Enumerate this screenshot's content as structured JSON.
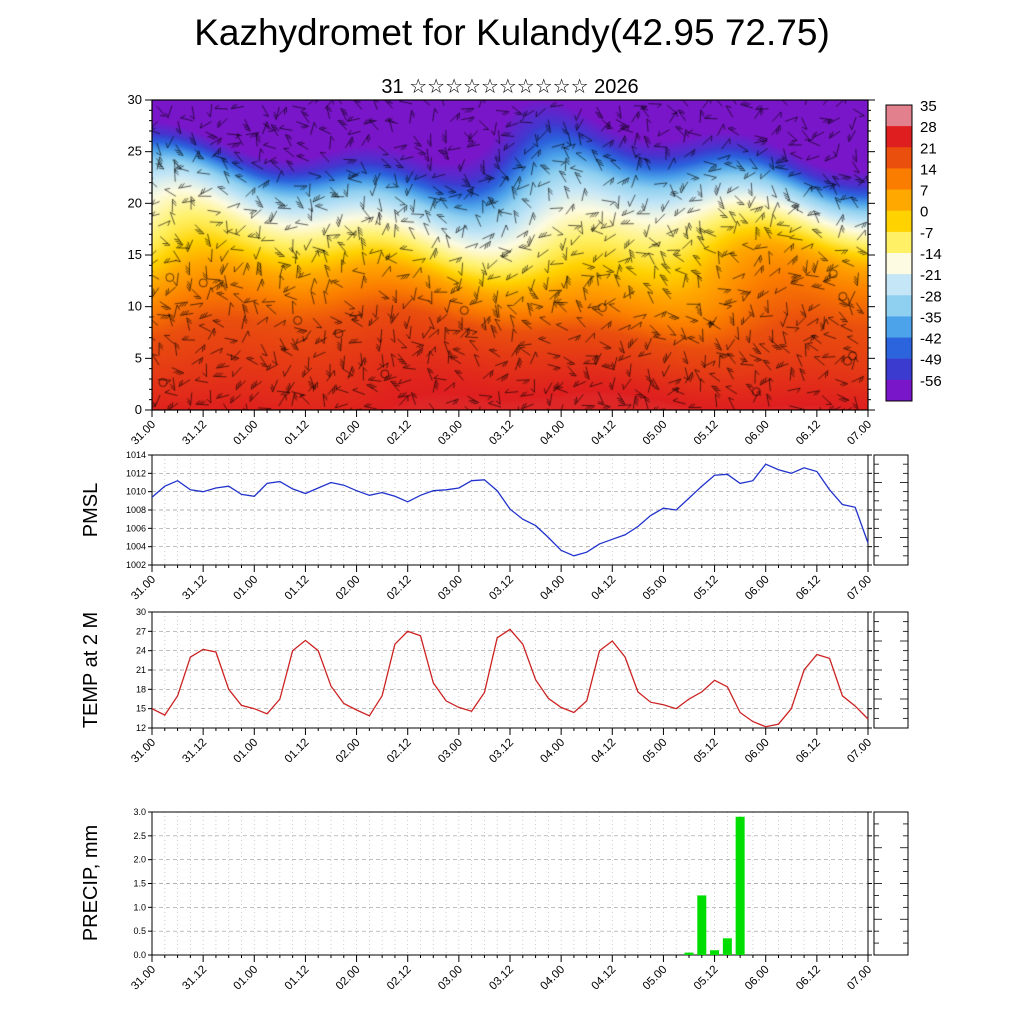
{
  "header": {
    "title": "Kazhydromet for Kulandy(42.95 72.75)",
    "subtitle": "31 ☆☆☆☆☆☆☆☆☆☆ 2026"
  },
  "x_tick_labels": [
    "31.00",
    "31.12",
    "01.00",
    "01.12",
    "02.00",
    "02.12",
    "03.00",
    "03.12",
    "04.00",
    "04.12",
    "05.00",
    "05.12",
    "06.00",
    "06.12",
    "07.00"
  ],
  "chart_data": [
    {
      "id": "temperature_height_cross_section",
      "type": "heatmap",
      "overlay": "wind-barbs",
      "ylim": [
        0,
        30
      ],
      "y_ticks": [
        0,
        5,
        10,
        15,
        20,
        25,
        30
      ],
      "y_tick_labels": [
        "0",
        "5",
        "10",
        "15",
        "20",
        "25",
        "30"
      ],
      "profile_anchors": [
        [
          0,
          28.5
        ],
        [
          8,
          21
        ],
        [
          13,
          7
        ],
        [
          15.5,
          -5
        ],
        [
          18,
          -14
        ],
        [
          21,
          -28
        ],
        [
          23,
          -40
        ],
        [
          24.5,
          -50
        ],
        [
          27,
          -58
        ],
        [
          30,
          -63
        ]
      ],
      "colorbar": {
        "tick_labels": [
          "35",
          "28",
          "21",
          "14",
          "7",
          "0",
          "-7",
          "-14",
          "-21",
          "-28",
          "-35",
          "-42",
          "-49",
          "-56"
        ],
        "colors": [
          "#e2808e",
          "#df1f1f",
          "#ea4f0e",
          "#fb7d00",
          "#ffa800",
          "#ffd200",
          "#fff066",
          "#fdfbe1",
          "#c4e6f6",
          "#8fd0f0",
          "#4da3ea",
          "#2b64dd",
          "#3c3bd0",
          "#7a16c9"
        ]
      }
    },
    {
      "id": "pmsl",
      "type": "line",
      "label": "PMSL",
      "color": "#2233cc",
      "ylim": [
        1002,
        1014
      ],
      "y_ticks": [
        1002,
        1004,
        1006,
        1008,
        1010,
        1012,
        1014
      ],
      "y_tick_labels": [
        "1002",
        "1004",
        "1006",
        "1008",
        "1010",
        "1012",
        "1014"
      ],
      "x_step_hours": 3,
      "values": [
        1009.4,
        1010.6,
        1011.2,
        1010.2,
        1010.0,
        1010.4,
        1010.6,
        1009.7,
        1009.5,
        1010.9,
        1011.1,
        1010.3,
        1009.8,
        1010.4,
        1011.0,
        1010.7,
        1010.1,
        1009.6,
        1009.9,
        1009.5,
        1008.9,
        1009.6,
        1010.1,
        1010.2,
        1010.4,
        1011.2,
        1011.3,
        1010.1,
        1008.1,
        1007.0,
        1006.3,
        1005.0,
        1003.6,
        1003.0,
        1003.4,
        1004.3,
        1004.8,
        1005.3,
        1006.2,
        1007.4,
        1008.2,
        1008.0,
        1009.3,
        1010.6,
        1011.8,
        1011.9,
        1010.9,
        1011.2,
        1013.0,
        1012.4,
        1012.0,
        1012.6,
        1012.2,
        1010.2,
        1008.6,
        1008.3,
        1004.4
      ]
    },
    {
      "id": "temp_2m",
      "type": "line",
      "label": "TEMP at 2 M",
      "color": "#cc2222",
      "ylim": [
        12,
        30
      ],
      "y_ticks": [
        12,
        15,
        18,
        21,
        24,
        27,
        30
      ],
      "y_tick_labels": [
        "12",
        "15",
        "18",
        "21",
        "24",
        "27",
        "30"
      ],
      "x_step_hours": 3,
      "values": [
        15.0,
        14.0,
        17.0,
        23.0,
        24.2,
        23.8,
        18.0,
        15.5,
        15.0,
        14.2,
        16.5,
        24.0,
        25.6,
        24.0,
        18.5,
        15.8,
        14.8,
        13.9,
        17.0,
        25.0,
        27.0,
        26.3,
        19.0,
        16.2,
        15.2,
        14.6,
        17.5,
        26.0,
        27.3,
        25.0,
        19.5,
        16.6,
        15.2,
        14.4,
        16.2,
        24.0,
        25.5,
        23.0,
        17.6,
        16.0,
        15.6,
        15.0,
        16.5,
        17.6,
        19.4,
        18.4,
        14.4,
        13.0,
        12.2,
        12.6,
        15.0,
        21.0,
        23.4,
        22.8,
        17.0,
        15.4,
        13.4
      ]
    },
    {
      "id": "precip",
      "type": "bar",
      "label": "PRECIP, mm",
      "color": "#00dd00",
      "ylim": [
        0,
        3
      ],
      "y_ticks": [
        0,
        0.5,
        1,
        1.5,
        2,
        2.5,
        3
      ],
      "y_tick_labels": [
        "0.0",
        "0.5",
        "1.0",
        "1.5",
        "2.0",
        "2.5",
        "3.0"
      ],
      "x_step_hours": 3,
      "values": [
        0,
        0,
        0,
        0,
        0,
        0,
        0,
        0,
        0,
        0,
        0,
        0,
        0,
        0,
        0,
        0,
        0,
        0,
        0,
        0,
        0,
        0,
        0,
        0,
        0,
        0,
        0,
        0,
        0,
        0,
        0,
        0,
        0,
        0,
        0,
        0,
        0,
        0,
        0,
        0,
        0,
        0,
        0.05,
        1.25,
        0.1,
        0.35,
        2.9,
        0,
        0,
        0,
        0,
        0,
        0,
        0,
        0,
        0,
        0
      ]
    }
  ]
}
